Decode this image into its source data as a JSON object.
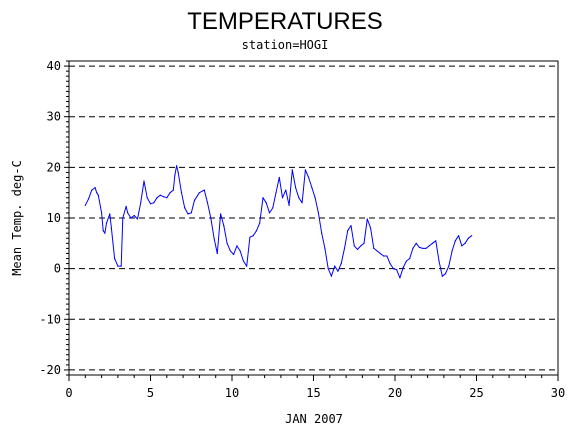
{
  "chart_data": {
    "type": "line",
    "title": "TEMPERATURES",
    "subtitle": "station=HOGI",
    "xlabel": "JAN 2007",
    "ylabel": "Mean Temp. deg-C",
    "xlim": [
      0,
      30
    ],
    "ylim": [
      -21,
      41
    ],
    "xticks": [
      0,
      5,
      10,
      15,
      20,
      25,
      30
    ],
    "yticks": [
      -20,
      -10,
      0,
      10,
      20,
      30,
      40
    ],
    "grid": "horizontal dashed at y ticks",
    "line_color": "#0000ff",
    "series": [
      {
        "x": [
          1.0,
          1.2,
          1.4,
          1.6,
          1.7,
          1.8,
          2.0,
          2.1,
          2.2,
          2.3,
          2.5,
          2.6,
          2.7,
          2.8,
          3.0,
          3.2,
          3.3,
          3.5,
          3.6,
          3.8,
          4.0,
          4.2,
          4.4,
          4.6,
          4.8,
          5.0,
          5.2,
          5.4,
          5.6,
          5.8,
          6.0,
          6.2,
          6.4,
          6.5,
          6.6,
          6.7,
          6.9,
          7.1,
          7.3,
          7.5,
          7.7,
          8.0,
          8.3,
          8.5,
          8.7,
          8.9,
          9.1,
          9.3,
          9.5,
          9.7,
          9.9,
          10.1,
          10.3,
          10.5,
          10.7,
          10.9,
          11.1,
          11.3,
          11.5,
          11.7,
          11.9,
          12.1,
          12.3,
          12.5,
          12.7,
          12.9,
          13.1,
          13.3,
          13.5,
          13.7,
          13.9,
          14.1,
          14.3,
          14.5,
          14.7,
          14.9,
          15.1,
          15.3,
          15.5,
          15.7,
          15.9,
          16.1,
          16.3,
          16.5,
          16.7,
          16.9,
          17.1,
          17.3,
          17.5,
          17.7,
          17.9,
          18.1,
          18.3,
          18.5,
          18.7,
          18.9,
          19.1,
          19.3,
          19.5,
          19.7,
          19.9,
          20.1,
          20.3,
          20.5,
          20.7,
          20.9,
          21.1,
          21.3,
          21.5,
          21.7,
          21.9,
          22.1,
          22.3,
          22.5,
          22.7,
          22.9,
          23.1,
          23.3,
          23.5,
          23.7,
          23.9,
          24.1,
          24.3,
          24.5,
          24.7
        ],
        "y": [
          12.5,
          13.8,
          15.5,
          16.0,
          15.0,
          14.5,
          11.0,
          7.5,
          7.0,
          9.0,
          10.8,
          8.0,
          5.0,
          2.0,
          0.5,
          0.5,
          10.0,
          12.3,
          11.0,
          10.0,
          10.5,
          9.8,
          13.0,
          17.3,
          14.0,
          12.8,
          13.0,
          14.0,
          14.5,
          14.2,
          14.0,
          15.0,
          15.5,
          18.5,
          20.3,
          19.0,
          15.0,
          12.0,
          10.8,
          11.0,
          13.5,
          15.0,
          15.5,
          13.0,
          10.0,
          6.0,
          3.0,
          10.8,
          8.5,
          5.0,
          3.5,
          2.8,
          4.5,
          3.5,
          1.5,
          0.5,
          6.2,
          6.5,
          7.5,
          9.0,
          14.0,
          13.0,
          11.0,
          12.0,
          15.0,
          18.0,
          14.0,
          15.5,
          12.5,
          19.5,
          16.0,
          14.0,
          13.0,
          19.5,
          18.0,
          16.0,
          14.0,
          11.0,
          7.0,
          4.0,
          0.0,
          -1.5,
          0.5,
          -0.5,
          1.0,
          4.0,
          7.5,
          8.5,
          4.5,
          3.8,
          4.5,
          5.0,
          9.8,
          8.0,
          4.0,
          3.5,
          3.0,
          2.5,
          2.5,
          1.0,
          0.0,
          -0.2,
          -1.8,
          0.2,
          1.5,
          2.0,
          4.0,
          5.0,
          4.2,
          4.0,
          4.0,
          4.5,
          5.0,
          5.5,
          1.5,
          -1.5,
          -1.0,
          0.5,
          3.5,
          5.5,
          6.5,
          4.5,
          5.0,
          6.0,
          6.5
        ]
      }
    ]
  }
}
